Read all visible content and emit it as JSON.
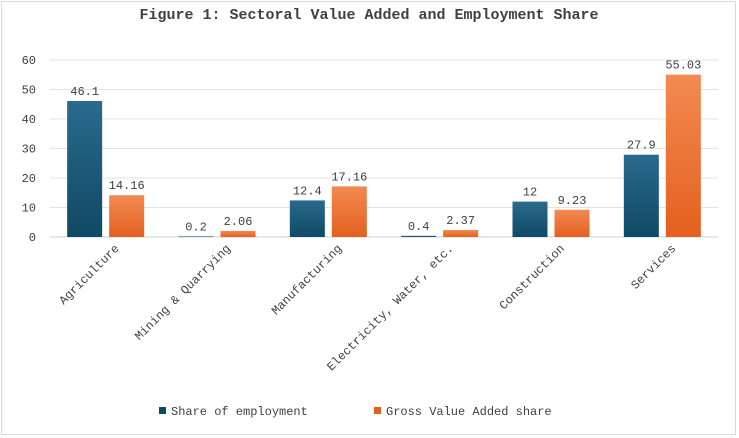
{
  "chart_data": {
    "type": "bar",
    "title": "Figure 1: Sectoral Value Added and Employment Share",
    "categories": [
      "Agriculture",
      "Mining & Quarrying",
      "Manufacturing",
      "Electricity, Water, etc.",
      "Construction",
      "Services"
    ],
    "series": [
      {
        "name": "Share of employment",
        "values": [
          46.1,
          0.2,
          12.4,
          0.4,
          12,
          27.9
        ],
        "labels": [
          "46.1",
          "0.2",
          "12.4",
          "0.4",
          "12",
          "27.9"
        ],
        "color_top": "#2a6a8c",
        "color_bottom": "#0f4a66"
      },
      {
        "name": "Gross Value Added share",
        "values": [
          14.16,
          2.06,
          17.16,
          2.37,
          9.23,
          55.03
        ],
        "labels": [
          "14.16",
          "2.06",
          "17.16",
          "2.37",
          "9.23",
          "55.03"
        ],
        "color_top": "#f28a52",
        "color_bottom": "#e4601f"
      }
    ],
    "ylim": [
      0,
      60
    ],
    "yticks": [
      0,
      10,
      20,
      30,
      40,
      50,
      60
    ],
    "grid": true,
    "legend_position": "bottom"
  }
}
